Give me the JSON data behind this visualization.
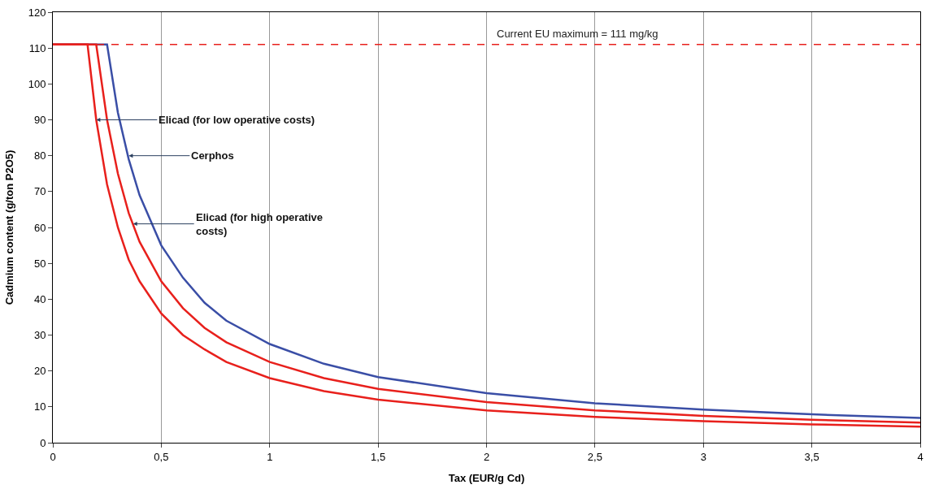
{
  "chart_data": {
    "type": "line",
    "xlabel": "Tax (EUR/g Cd)",
    "ylabel": "Cadmium content (g/ton P2O5)",
    "xlim": [
      0,
      4
    ],
    "ylim": [
      0,
      120
    ],
    "xticks": [
      0,
      {
        "value": 0.5,
        "label": "0,5"
      },
      1,
      {
        "value": 1.5,
        "label": "1,5"
      },
      2,
      {
        "value": 2.5,
        "label": "2,5"
      },
      3,
      {
        "value": 3.5,
        "label": "3,5"
      },
      4
    ],
    "yticks": [
      0,
      10,
      20,
      30,
      40,
      50,
      60,
      70,
      80,
      90,
      100,
      110,
      120
    ],
    "grid": "x",
    "marker": "none",
    "line_style": "solid",
    "series": [
      {
        "color": "#3a4ea6",
        "x": [
          0,
          0.25,
          0.3,
          0.35,
          0.4,
          0.5,
          0.6,
          0.7,
          0.8,
          1,
          1.25,
          1.5,
          2,
          2.5,
          3,
          3.5,
          4
        ],
        "values": [
          111,
          111,
          92,
          79,
          69,
          55,
          46,
          39,
          34,
          27.5,
          22,
          18.3,
          13.8,
          11,
          9.2,
          7.9,
          6.9
        ]
      },
      {
        "color": "#e8201c",
        "x": [
          0,
          0.2,
          0.25,
          0.3,
          0.35,
          0.4,
          0.5,
          0.6,
          0.7,
          0.8,
          1,
          1.25,
          1.5,
          2,
          2.5,
          3,
          3.5,
          4
        ],
        "values": [
          111,
          111,
          90,
          75,
          64,
          56,
          45,
          37.5,
          32,
          28,
          22.5,
          18,
          15,
          11.3,
          9,
          7.5,
          6.4,
          5.6
        ]
      },
      {
        "color": "#e8201c",
        "x": [
          0,
          0.16,
          0.2,
          0.25,
          0.3,
          0.35,
          0.4,
          0.5,
          0.6,
          0.7,
          0.8,
          1,
          1.25,
          1.5,
          2,
          2.5,
          3,
          3.5,
          4
        ],
        "values": [
          111,
          111,
          90,
          72,
          60,
          51,
          45,
          36,
          30,
          26,
          22.5,
          18,
          14.4,
          12,
          9,
          7.2,
          6,
          5.1,
          4.5
        ]
      }
    ],
    "ref_lines": [
      {
        "axis": "y",
        "value": 111,
        "label": "Current EU maximum = 111 mg/kg",
        "color": "#e8201c",
        "line_style": "dashed"
      }
    ],
    "annotations": [
      {
        "text": "Elicad (for low operative costs)",
        "x": 0.2,
        "y": 90
      },
      {
        "text": "Cerphos",
        "x": 0.35,
        "y": 80
      },
      {
        "text": "Elicad (for high operative costs)",
        "x": 0.37,
        "y": 61
      }
    ]
  }
}
